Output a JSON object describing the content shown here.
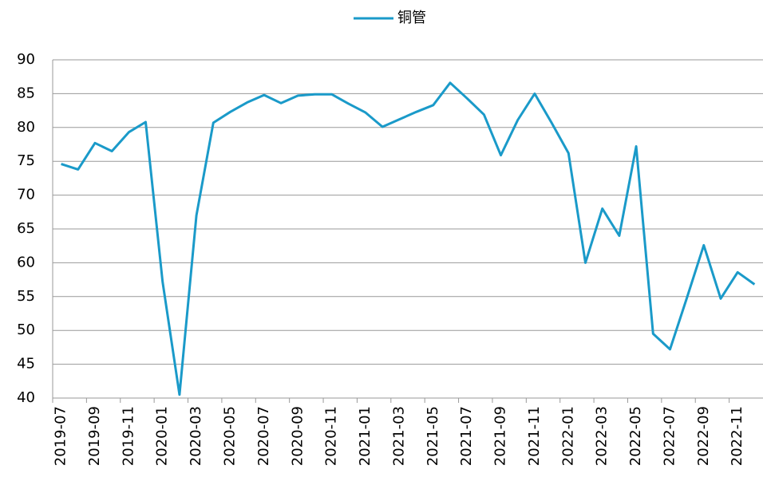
{
  "chart_data": {
    "type": "line",
    "categories": [
      "2019-07",
      null,
      "2019-09",
      null,
      "2019-11",
      null,
      "2020-01",
      null,
      "2020-03",
      null,
      "2020-05",
      null,
      "2020-07",
      null,
      "2020-09",
      null,
      "2020-11",
      null,
      "2021-01",
      null,
      "2021-03",
      null,
      "2021-05",
      null,
      "2021-07",
      null,
      "2021-09",
      null,
      "2021-11",
      null,
      "2022-01",
      null,
      "2022-03",
      null,
      "2022-05",
      null,
      "2022-07",
      null,
      "2022-09",
      null,
      "2022-11",
      null
    ],
    "series": [
      {
        "name": "铜管",
        "color": "#1a9ac9",
        "values": [
          74.6,
          73.8,
          77.7,
          76.5,
          79.3,
          80.8,
          57.2,
          40.5,
          67.0,
          80.7,
          82.3,
          83.7,
          84.8,
          83.6,
          84.7,
          84.9,
          84.9,
          83.5,
          82.2,
          80.1,
          81.2,
          82.3,
          83.3,
          86.6,
          84.3,
          81.9,
          75.9,
          81.1,
          85.0,
          80.7,
          76.2,
          60.0,
          68.0,
          64.0,
          77.2,
          49.5,
          47.2,
          54.8,
          62.6,
          54.7,
          58.6,
          56.8
        ]
      }
    ],
    "ylim": [
      40,
      90
    ],
    "yticks": [
      40,
      45,
      50,
      55,
      60,
      65,
      70,
      75,
      80,
      85,
      90
    ],
    "grid": true,
    "legend": "top"
  }
}
